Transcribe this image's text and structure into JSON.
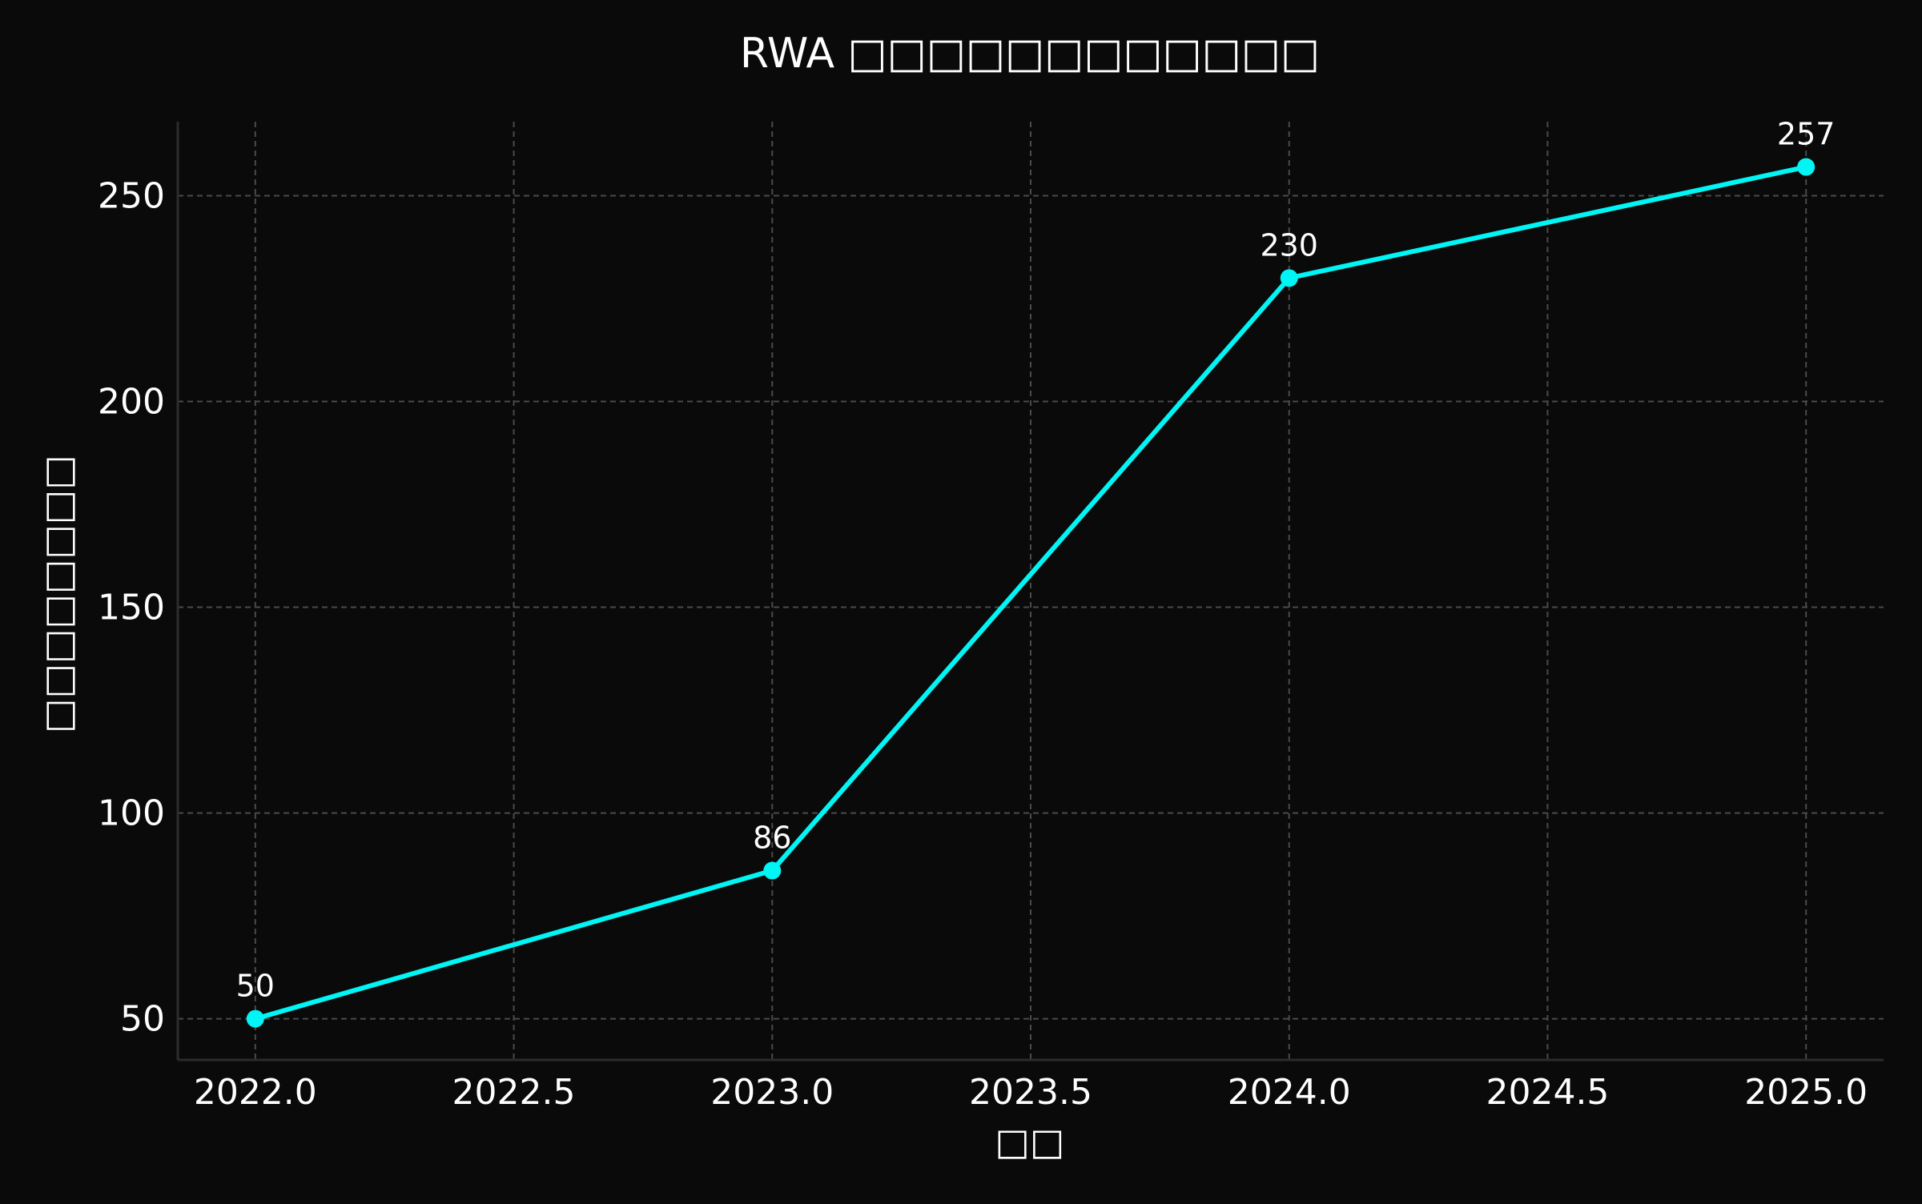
{
  "chart_data": {
    "type": "line",
    "title": "RWA □□□□□□□□□□□□",
    "xlabel": "□□",
    "ylabel": "□□□□□□□□",
    "x": [
      2022,
      2023,
      2024,
      2025
    ],
    "series": [
      {
        "values": [
          50,
          86,
          230,
          257
        ],
        "data_labels": [
          "50",
          "86",
          "230",
          "257"
        ],
        "color": "#00f5f5"
      }
    ],
    "xlim": [
      2021.85,
      2025.15
    ],
    "ylim": [
      40,
      268
    ],
    "x_ticks": [
      2022.0,
      2022.5,
      2023.0,
      2023.5,
      2024.0,
      2024.5,
      2025.0
    ],
    "x_tick_labels": [
      "2022.0",
      "2022.5",
      "2023.0",
      "2023.5",
      "2024.0",
      "2024.5",
      "2025.0"
    ],
    "y_ticks": [
      50,
      100,
      150,
      200,
      250
    ],
    "y_tick_labels": [
      "50",
      "100",
      "150",
      "200",
      "250"
    ],
    "grid": true,
    "markers": true,
    "legend": false
  },
  "colors": {
    "background": "#0a0a0a",
    "grid": "#4a4a4a",
    "axis": "#2c2c2c",
    "text": "#ffffff",
    "series": "#00f5f5"
  }
}
